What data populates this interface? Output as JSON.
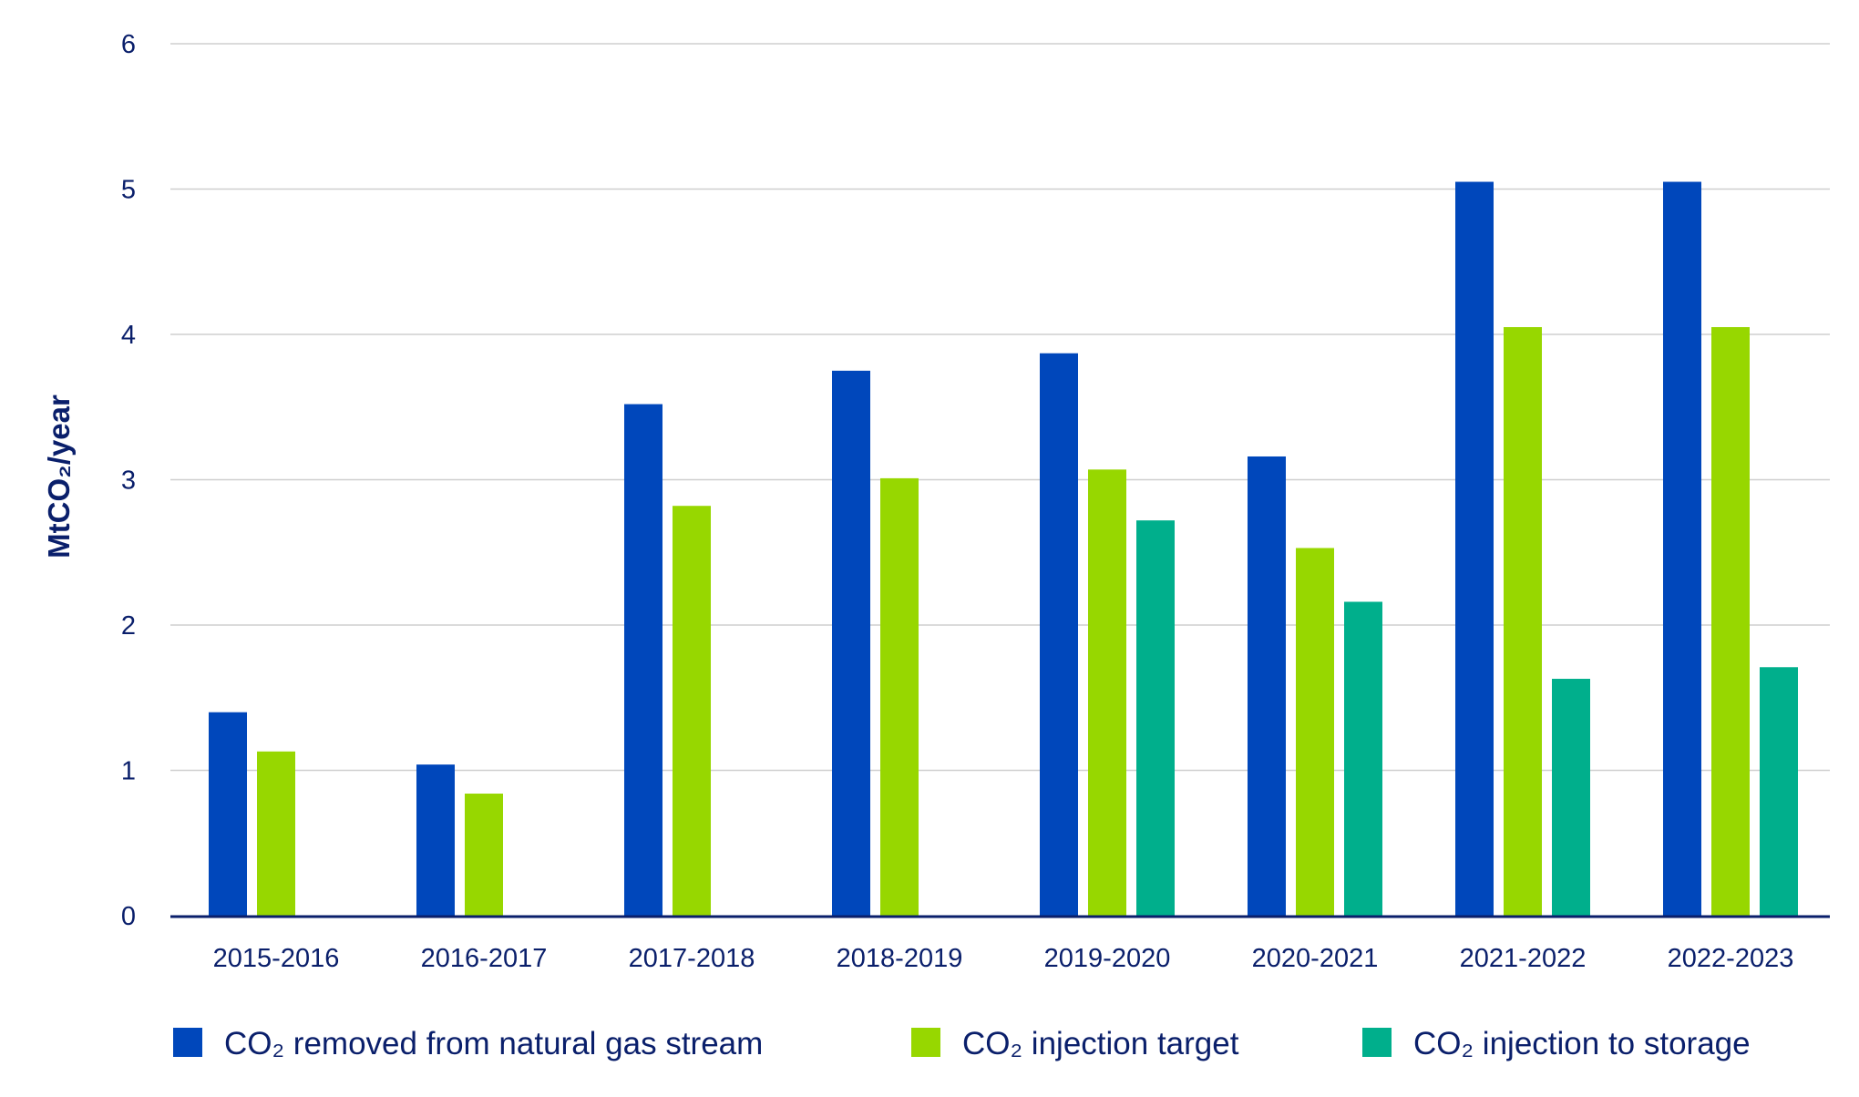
{
  "chart_data": {
    "type": "bar",
    "ylabel": "MtCO₂/year",
    "ylim": [
      0,
      6
    ],
    "yticks": [
      0,
      1,
      2,
      3,
      4,
      5,
      6
    ],
    "grid": true,
    "legend_position": "bottom",
    "categories": [
      "2015-2016",
      "2016-2017",
      "2017-2018",
      "2018-2019",
      "2019-2020",
      "2020-2021",
      "2021-2022",
      "2022-2023"
    ],
    "series": [
      {
        "name": "CO₂ removed from natural gas stream",
        "color": "#0047bb",
        "values": [
          1.4,
          1.04,
          3.52,
          3.75,
          3.87,
          3.16,
          5.05,
          5.05
        ]
      },
      {
        "name": "CO₂ injection target",
        "color": "#97d700",
        "values": [
          1.13,
          0.84,
          2.82,
          3.01,
          3.07,
          2.53,
          4.05,
          4.05
        ]
      },
      {
        "name": "CO₂ injection to storage",
        "color": "#00af8c",
        "values": [
          null,
          null,
          null,
          null,
          2.72,
          2.16,
          1.63,
          1.71
        ]
      }
    ],
    "colors": {
      "text": "#0a1f6b",
      "axis": "#0a1f6b",
      "grid": "#cfcfcf"
    }
  }
}
